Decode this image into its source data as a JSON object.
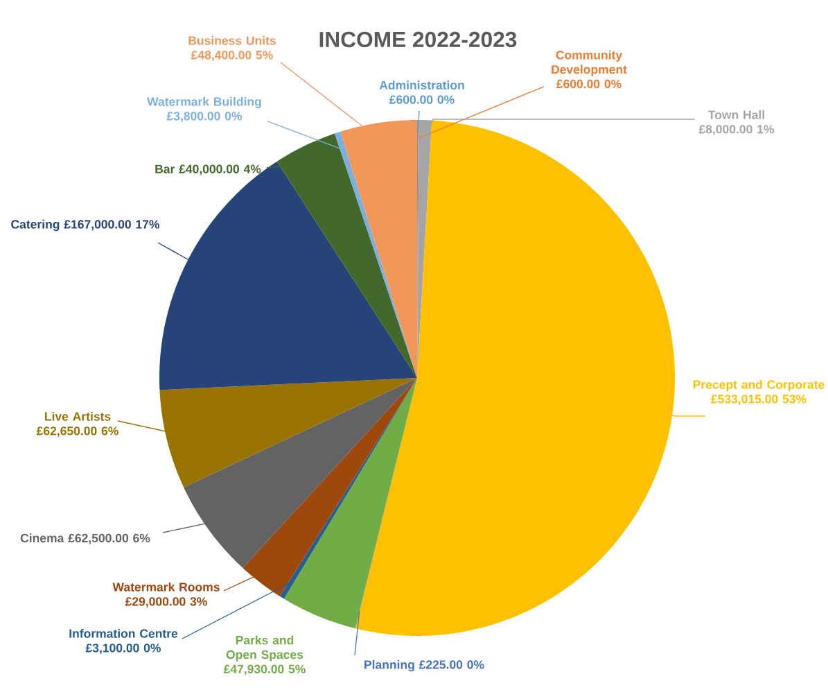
{
  "chart_data": {
    "type": "pie",
    "title": "INCOME 2022-2023",
    "categories": [
      "Administration",
      "Community Development",
      "Town Hall",
      "Precept and Corporate",
      "Planning",
      "Parks and Open Spaces",
      "Information Centre",
      "Watermark Rooms",
      "Cinema",
      "Live Artists",
      "Catering",
      "Bar",
      "Watermark Building",
      "Business Units"
    ],
    "values": [
      600,
      600,
      8000,
      533015,
      225,
      47930,
      3100,
      29000,
      62500,
      62650,
      167000,
      40000,
      3800,
      48400
    ],
    "colors": [
      "#5b9bd5",
      "#ed7d31",
      "#a5a5a5",
      "#ffc000",
      "#4472c4",
      "#70ad47",
      "#255e91",
      "#9e480e",
      "#636363",
      "#997300",
      "#264478",
      "#43682b",
      "#7cafdd",
      "#f1975a"
    ],
    "value_labels": [
      "£600.00  0%",
      "£600.00  0%",
      "£8,000.00  1%",
      "£533,015.00  53%",
      "£225.00  0%",
      "£47,930.00  5%",
      "£3,100.00  0%",
      "£29,000.00  3%",
      "£62,500.00  6%",
      "£62,650.00  6%",
      "£167,000.00  17%",
      "£40,000.00  4%",
      "£3,800.00  0%",
      "£48,400.00  5%"
    ]
  }
}
